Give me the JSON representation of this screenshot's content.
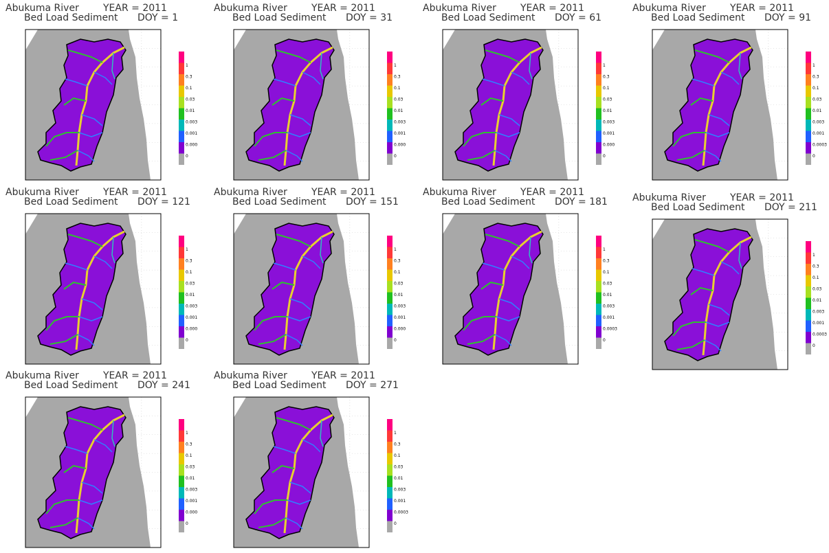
{
  "panels": [
    {
      "river": "Abukuma River",
      "year": "YEAR = 2011",
      "variable": "Bed Load Sediment",
      "doy": "DOY = 1",
      "colorbar": [
        "1",
        "0.3",
        "0.1",
        "0.03",
        "0.01",
        "0.003",
        "0.001",
        "0.000",
        "0"
      ]
    },
    {
      "river": "Abukuma River",
      "year": "YEAR = 2011",
      "variable": "Bed Load Sediment",
      "doy": "DOY = 31",
      "colorbar": [
        "1",
        "0.3",
        "0.1",
        "0.03",
        "0.01",
        "0.003",
        "0.001",
        "0.000",
        "0"
      ]
    },
    {
      "river": "Abukuma River",
      "year": "YEAR = 2011",
      "variable": "Bed Load Sediment",
      "doy": "DOY = 61",
      "colorbar": [
        "1",
        "0.3",
        "0.1",
        "0.03",
        "0.01",
        "0.003",
        "0.001",
        "0.000",
        "0"
      ]
    },
    {
      "river": "Abukuma River",
      "year": "YEAR = 2011",
      "variable": "Bed Load Sediment",
      "doy": "DOY = 91",
      "colorbar": [
        "1",
        "0.3",
        "0.1",
        "0.03",
        "0.01",
        "0.003",
        "0.001",
        "0.0003",
        "0"
      ]
    },
    {
      "river": "Abukuma River",
      "year": "YEAR = 2011",
      "variable": "Bed Load Sediment",
      "doy": "DOY = 121",
      "colorbar": [
        "1",
        "0.3",
        "0.1",
        "0.03",
        "0.01",
        "0.003",
        "0.001",
        "0.000",
        "0"
      ]
    },
    {
      "river": "Abukuma River",
      "year": "YEAR = 2011",
      "variable": "Bed Load Sediment",
      "doy": "DOY = 151",
      "colorbar": [
        "1",
        "0.3",
        "0.1",
        "0.03",
        "0.01",
        "0.003",
        "0.001",
        "0.000",
        "0"
      ]
    },
    {
      "river": "Abukuma River",
      "year": "YEAR = 2011",
      "variable": "Bed Load Sediment",
      "doy": "DOY = 181",
      "colorbar": [
        "1",
        "0.3",
        "0.1",
        "0.03",
        "0.01",
        "0.003",
        "0.001",
        "0.0003",
        "0"
      ]
    },
    {
      "river": "Abukuma River",
      "year": "YEAR = 2011",
      "variable": "Bed Load Sediment",
      "doy": "DOY = 211",
      "colorbar": [
        "1",
        "0.3",
        "0.1",
        "0.03",
        "0.01",
        "0.003",
        "0.001",
        "0.0003",
        "0"
      ]
    },
    {
      "river": "Abukuma River",
      "year": "YEAR = 2011",
      "variable": "Bed Load Sediment",
      "doy": "DOY = 241",
      "colorbar": [
        "1",
        "0.3",
        "0.1",
        "0.03",
        "0.01",
        "0.003",
        "0.001",
        "0.000",
        "0"
      ]
    },
    {
      "river": "Abukuma River",
      "year": "YEAR = 2011",
      "variable": "Bed Load Sediment",
      "doy": "DOY = 271",
      "colorbar": [
        "1",
        "0.3",
        "0.1",
        "0.03",
        "0.01",
        "0.003",
        "0.001",
        "0.0003",
        "0"
      ]
    }
  ]
}
